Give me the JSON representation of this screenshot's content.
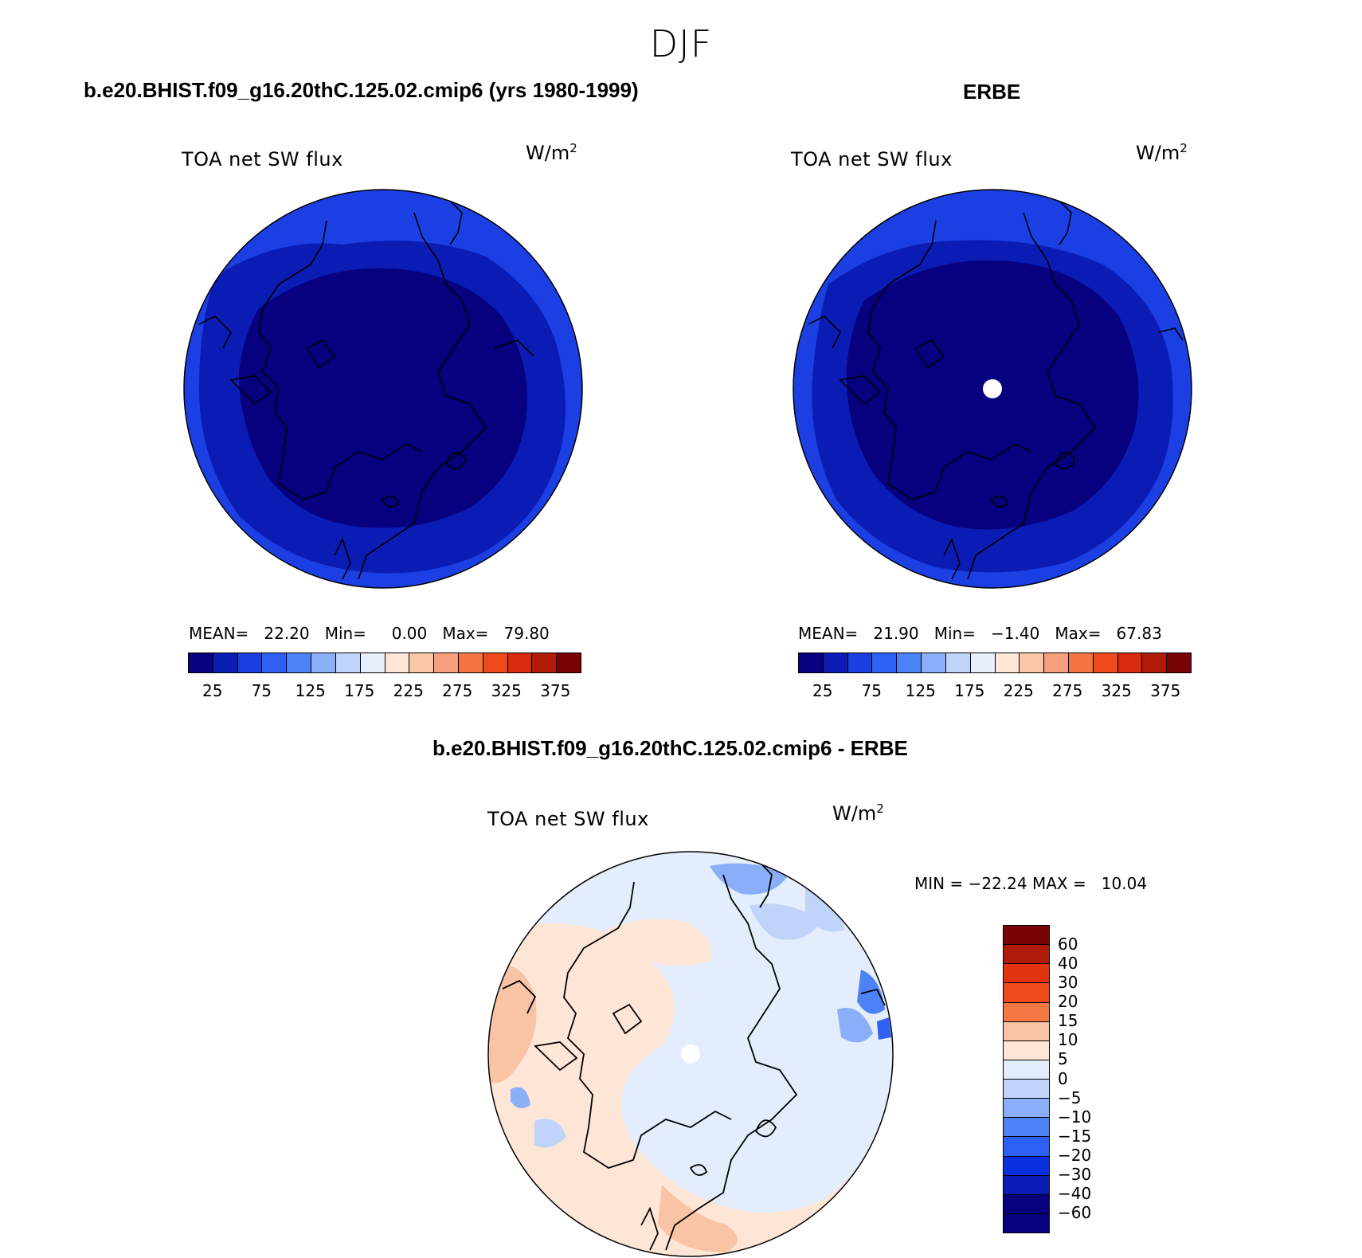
{
  "figure": {
    "title": "DJF"
  },
  "panels": {
    "model": {
      "title": "b.e20.BHIST.f09_g16.20thC.125.02.cmip6 (yrs 1980-1999)",
      "variable": "TOA net SW flux",
      "units_base": "W/m",
      "units_exp": "2",
      "stats": "MEAN=   22.20   Min=     0.00   Max=   79.80"
    },
    "obs": {
      "title": "ERBE",
      "variable": "TOA net SW flux",
      "units_base": "W/m",
      "units_exp": "2",
      "stats": "MEAN=   21.90   Min=   −1.40   Max=   67.83"
    },
    "diff": {
      "title": "b.e20.BHIST.f09_g16.20thC.125.02.cmip6 - ERBE",
      "variable": "TOA net SW flux",
      "units_base": "W/m",
      "units_exp": "2",
      "stats": "MIN = −22.24 MAX =   10.04"
    }
  },
  "colorbars": {
    "main": {
      "colors": [
        "#07007f",
        "#0a1cb4",
        "#1a3fe0",
        "#2f60f5",
        "#4d82f7",
        "#8aaef7",
        "#c0d3f9",
        "#e6effb",
        "#fde6d6",
        "#f9c6a8",
        "#f6a07d",
        "#f3753f",
        "#ee4a1e",
        "#d92a0e",
        "#b01a09",
        "#7a0306"
      ],
      "tick_labels": [
        "25",
        "75",
        "125",
        "175",
        "225",
        "275",
        "325",
        "375"
      ]
    },
    "diff": {
      "colors": [
        "#7a0306",
        "#b01a09",
        "#e0330e",
        "#ef4a1e",
        "#f47844",
        "#f9c3a6",
        "#fde6d6",
        "#e3edfb",
        "#c0d3f9",
        "#8aaef7",
        "#4d82f7",
        "#2f60f5",
        "#0a30e0",
        "#0a1cb4",
        "#07007f"
      ],
      "tick_labels": [
        "60",
        "40",
        "30",
        "20",
        "15",
        "10",
        "5",
        "0",
        "−5",
        "−10",
        "−15",
        "−20",
        "−30",
        "−40",
        "−60"
      ]
    }
  },
  "chart_data": [
    {
      "type": "heatmap",
      "title": "b.e20.BHIST.f09_g16.20thC.125.02.cmip6 (yrs 1980-1999)",
      "projection": "north polar stereographic",
      "variable": "TOA net SW flux",
      "units": "W/m2",
      "mean": 22.2,
      "min": 0.0,
      "max": 79.8,
      "levels": [
        25,
        50,
        75,
        100,
        125,
        150,
        175,
        200,
        225,
        250,
        275,
        300,
        325,
        350,
        375
      ]
    },
    {
      "type": "heatmap",
      "title": "ERBE",
      "projection": "north polar stereographic",
      "variable": "TOA net SW flux",
      "units": "W/m2",
      "mean": 21.9,
      "min": -1.4,
      "max": 67.83,
      "levels": [
        25,
        50,
        75,
        100,
        125,
        150,
        175,
        200,
        225,
        250,
        275,
        300,
        325,
        350,
        375
      ]
    },
    {
      "type": "heatmap",
      "title": "b.e20.BHIST.f09_g16.20thC.125.02.cmip6 - ERBE",
      "projection": "north polar stereographic",
      "variable": "TOA net SW flux",
      "units": "W/m2",
      "min": -22.24,
      "max": 10.04,
      "levels": [
        -60,
        -40,
        -30,
        -20,
        -15,
        -10,
        -5,
        0,
        5,
        10,
        15,
        20,
        30,
        40,
        60
      ]
    }
  ]
}
